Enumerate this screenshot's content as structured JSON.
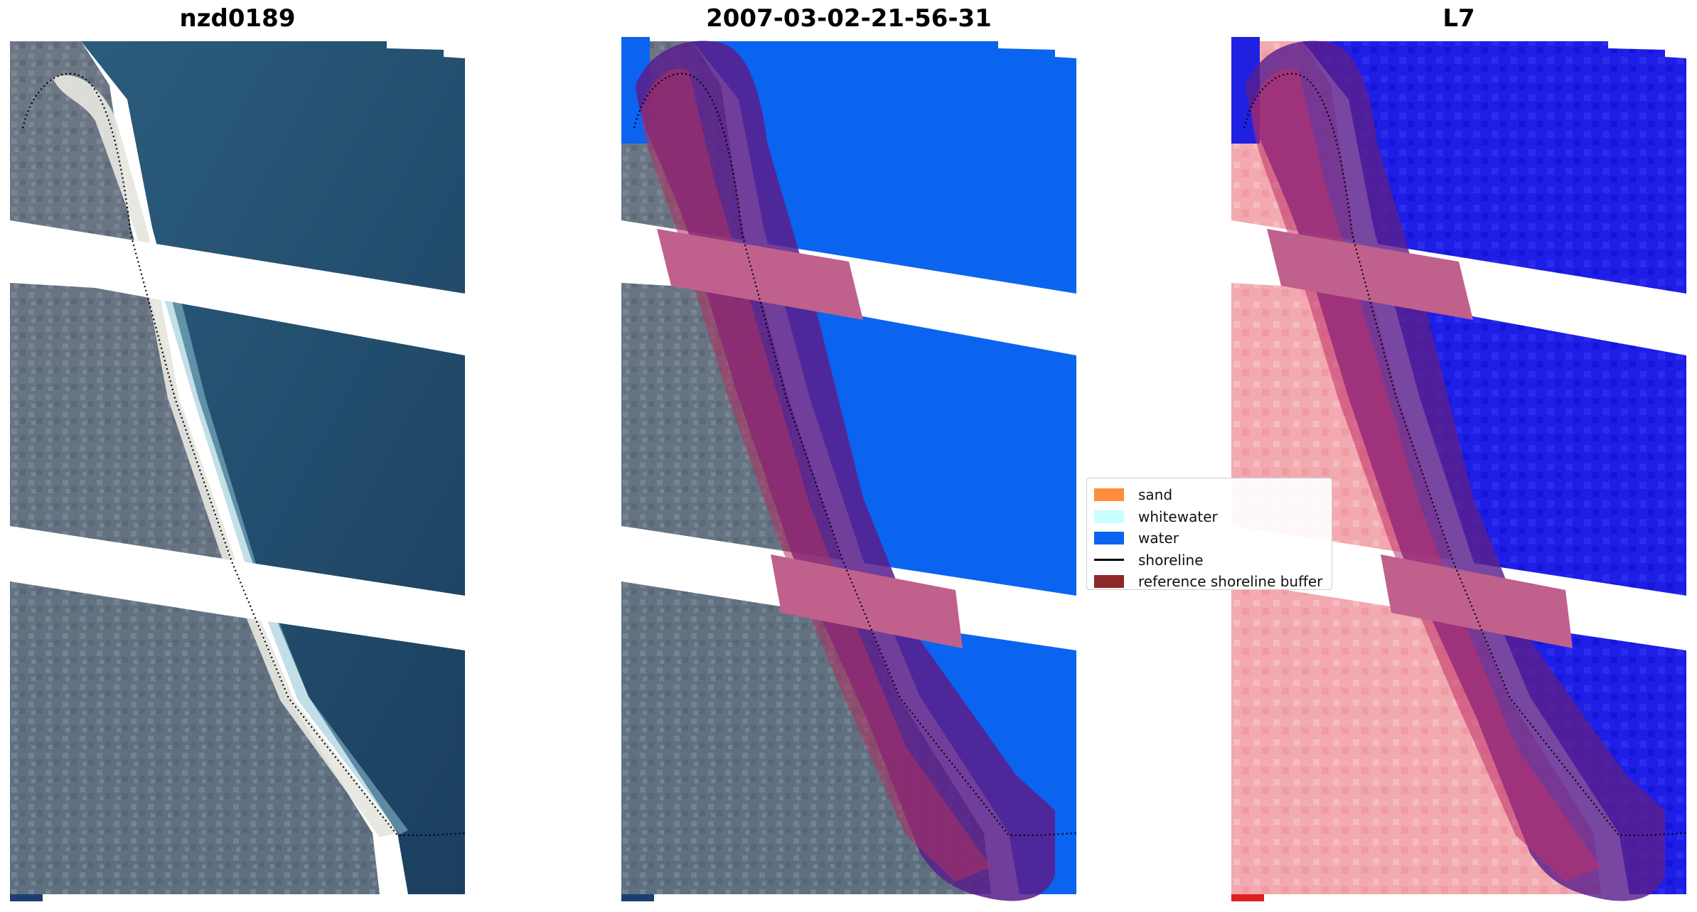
{
  "panels": [
    {
      "title": "nzd0189",
      "kind": "rgb"
    },
    {
      "title": "2007-03-02-21-56-31",
      "kind": "classified"
    },
    {
      "title": "L7",
      "kind": "index"
    }
  ],
  "legend": {
    "items": [
      {
        "label": "sand",
        "type": "patch",
        "color": "#ff8c3c"
      },
      {
        "label": "whitewater",
        "type": "patch",
        "color": "#c8ffff"
      },
      {
        "label": "water",
        "type": "patch",
        "color": "#0a64f0"
      },
      {
        "label": "shoreline",
        "type": "line",
        "color": "#000000"
      },
      {
        "label": "reference shoreline buffer",
        "type": "patch",
        "color": "#8c2828"
      }
    ]
  },
  "colors": {
    "deep_water": "#1f4a6e",
    "land": "#6f7e8c",
    "beach": "#e8e8e2",
    "class_water": "#0a64f0",
    "buffer_overlay": "#5a1e8c",
    "buffer_pink": "#c0608c",
    "index_water": "#1e1ee6",
    "index_land": "#f0a0a8"
  }
}
